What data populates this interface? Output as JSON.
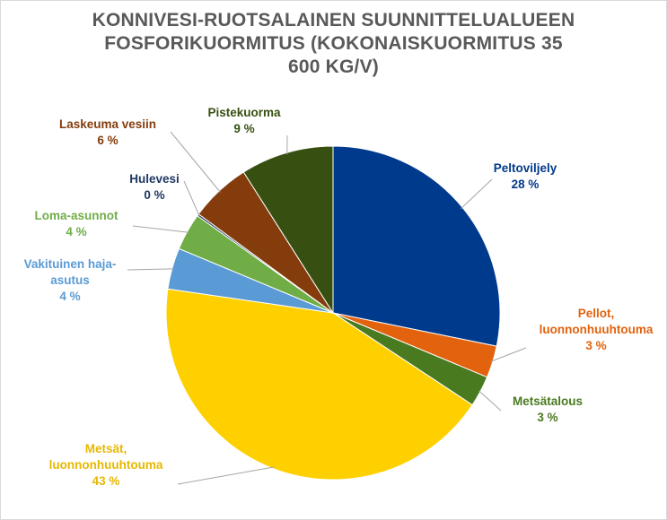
{
  "chart_data": {
    "type": "pie",
    "title_lines": [
      "KONNIVESI-RUOTSALAINEN SUUNNITTELUALUEEN",
      "FOSFORIKUORMITUS (KOKONAISKUORMITUS 35",
      "600 KG/V)"
    ],
    "slices": [
      {
        "label_lines": [
          "Peltoviljely"
        ],
        "value_label": "28 %",
        "value": 28.2,
        "color": "#003A8C"
      },
      {
        "label_lines": [
          "Pellot,",
          "luonnonhuuhtouma"
        ],
        "value_label": "3 %",
        "value": 3.1,
        "color": "#E2620E"
      },
      {
        "label_lines": [
          "Metsätalous"
        ],
        "value_label": "3 %",
        "value": 3.0,
        "color": "#4A7A1F"
      },
      {
        "label_lines": [
          "Metsät,",
          "luonnonhuuhtouma"
        ],
        "value_label": "43 %",
        "value": 43.0,
        "color": "#FFD000"
      },
      {
        "label_lines": [
          "Vakituinen haja-",
          "asutus"
        ],
        "value_label": "4 %",
        "value": 4.0,
        "color": "#5B9BD5"
      },
      {
        "label_lines": [
          "Loma-asunnot"
        ],
        "value_label": "4 %",
        "value": 3.6,
        "color": "#70AD47"
      },
      {
        "label_lines": [
          "Hulevesi"
        ],
        "value_label": "0 %",
        "value": 0.2,
        "color": "#1F3864"
      },
      {
        "label_lines": [
          "Laskeuma vesiin"
        ],
        "value_label": "6 %",
        "value": 5.9,
        "color": "#843C0C"
      },
      {
        "label_lines": [
          "Pistekuorma"
        ],
        "value_label": "9 %",
        "value": 9.0,
        "color": "#375011"
      }
    ]
  }
}
